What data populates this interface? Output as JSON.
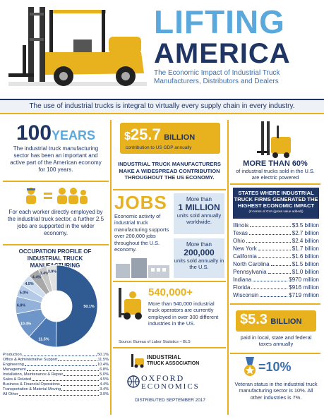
{
  "header": {
    "title_line1": "LIFTING",
    "title_line2": "AMERICA",
    "subtitle": "The Economic Impact of Industrial Truck Manufacturers, Distributors and Dealers"
  },
  "banner": "The use of industrial trucks is integral to virtually every supply chain in every industry.",
  "years": {
    "number": "100",
    "unit": "YEARS",
    "text": "The industrial truck manufacturing sector has been an important and active part of the American economy for 100 years."
  },
  "gdp": {
    "dollar": "$",
    "amount": "25.7",
    "unit": "BILLION",
    "caption": "contribution to US GDP annually",
    "headline": "INDUSTRIAL TRUCK MANUFACTURERS MAKE A WIDESPREAD CONTRIBUTION THROUGHOUT THE US ECONOMY."
  },
  "electric": {
    "headline": "MORE THAN 60%",
    "text": "of industrial trucks sold in the U.S. are electric powered"
  },
  "workers": {
    "equals": "=",
    "text": "For each worker directly employed by the industrial truck sector, a further 2.5 jobs are supported in the wider economy."
  },
  "jobs": {
    "title": "JOBS",
    "text": "Economic activity of industrial truck manufacturing supports over 200,000 jobs throughout the U.S. economy."
  },
  "units_world": {
    "prefix": "More than",
    "number": "1 MILLION",
    "suffix": "units sold annually worldwide."
  },
  "units_us": {
    "prefix": "More than",
    "number": "200,000",
    "suffix": "units sold annually in the U.S."
  },
  "states": {
    "title": "STATES WHERE INDUSTRIAL TRUCK FIRMS GENERATED THE HIGHEST ECONOMIC IMPACT",
    "note": "(In terms of GVA (gross value added))",
    "rows": [
      {
        "name": "Illinois",
        "value": "$3.5 billion"
      },
      {
        "name": "Texas",
        "value": "$2.7 billion"
      },
      {
        "name": "Ohio",
        "value": "$2.4 billion"
      },
      {
        "name": "New York",
        "value": "$1.7 billion"
      },
      {
        "name": "California",
        "value": "$1.6 billion"
      },
      {
        "name": "North Carolina",
        "value": "$1.5 billion"
      },
      {
        "name": "Pennsylvania",
        "value": "$1.0 billion"
      },
      {
        "name": "Indiana",
        "value": "$970 million"
      },
      {
        "name": "Florida",
        "value": "$916 million"
      },
      {
        "name": "Wisconsin",
        "value": "$719 million"
      }
    ]
  },
  "occupation": {
    "title": "OCCUPATION PROFILE OF INDUSTRIAL TRUCK MANUFACTURING",
    "rows": [
      {
        "name": "Production",
        "value": "50.1%",
        "pct": 50.1,
        "color": "#2f5a92"
      },
      {
        "name": "Office & Administrative Support",
        "value": "11.5%",
        "pct": 11.5,
        "color": "#4b78b3"
      },
      {
        "name": "Engineering",
        "value": "10.4%",
        "pct": 10.4,
        "color": "#6f96c8"
      },
      {
        "name": "Management",
        "value": "6.8%",
        "pct": 6.8,
        "color": "#93b2d9"
      },
      {
        "name": "Installation, Maintenance & Repair",
        "value": "5.0%",
        "pct": 5.0,
        "color": "#b3c9e6"
      },
      {
        "name": "Sales & Related",
        "value": "4.5%",
        "pct": 4.5,
        "color": "#cddcef"
      },
      {
        "name": "Business & Financial Operations",
        "value": "4.4%",
        "pct": 4.4,
        "color": "#a8a8a8"
      },
      {
        "name": "Transportation & Material Moving",
        "value": "3.4%",
        "pct": 3.4,
        "color": "#c8c8c8"
      },
      {
        "name": "All Other",
        "value": "3.9%",
        "pct": 3.9,
        "color": "#e2e2e2"
      }
    ]
  },
  "operators": {
    "headline": "540,000+",
    "text": "More than 540,000 industrial truck operators are currently employed in over 300 different industries in the US.",
    "source": "Source: Bureau of Labor Statistics – BLS"
  },
  "taxes": {
    "amount": "$5.3",
    "unit": "BILLION",
    "text": "paid in local, state and federal taxes annually"
  },
  "veterans": {
    "headline": "=10%",
    "text": "Veteran status in the industrial truck manufacturing sector is 10%. All other industries is 7%."
  },
  "logos": {
    "ita_line1": "INDUSTRIAL",
    "ita_line2": "TRUCK ASSOCIATION",
    "oxford_line1": "OXFORD",
    "oxford_line2": "ECONOMICS",
    "distributed": "DISTRIBUTED SEPTEMBER 2017"
  }
}
